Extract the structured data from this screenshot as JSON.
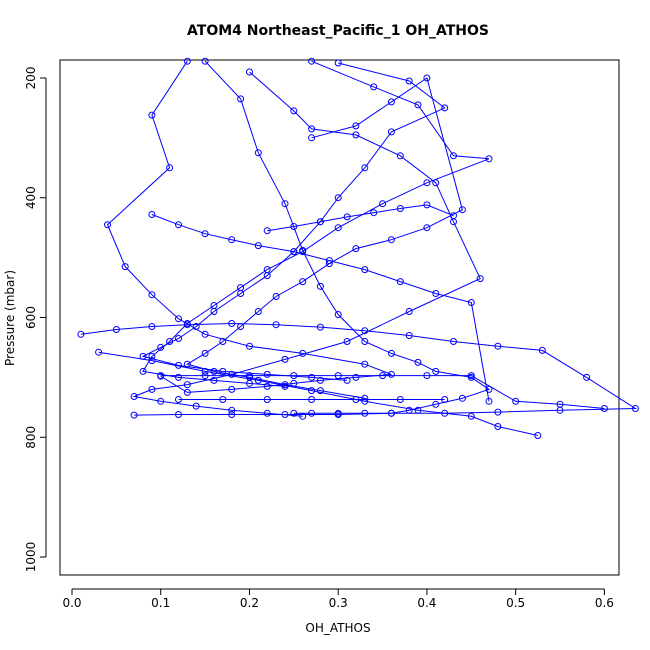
{
  "chart_data": {
    "type": "line",
    "title": "ATOM4 Northeast_Pacific_1 OH_ATHOS",
    "xlabel": "OH_ATHOS",
    "ylabel": "Pressure (mbar)",
    "xlim": [
      0.0,
      0.63
    ],
    "ylim": [
      1030,
      170
    ],
    "y_reversed": true,
    "xticks": [
      0.0,
      0.1,
      0.2,
      0.3,
      0.4,
      0.5,
      0.6
    ],
    "xtick_labels": [
      "0.0",
      "0.1",
      "0.2",
      "0.3",
      "0.4",
      "0.5",
      "0.6"
    ],
    "yticks": [
      200,
      400,
      600,
      800,
      1000
    ],
    "ytick_labels": [
      "200",
      "400",
      "600",
      "800",
      "1000"
    ],
    "grid": false,
    "color": "#0000ff",
    "marker": "open-circle",
    "series": [
      {
        "x": [
          0.13,
          0.09,
          0.11,
          0.04,
          0.06,
          0.09,
          0.12,
          0.15,
          0.2,
          0.26,
          0.33,
          0.36,
          0.32,
          0.28,
          0.25,
          0.22,
          0.18,
          0.13,
          0.1
        ],
        "y": [
          172,
          262,
          350,
          445,
          515,
          562,
          602,
          628,
          648,
          660,
          678,
          695,
          700,
          705,
          710,
          715,
          720,
          725,
          698
        ]
      },
      {
        "x": [
          0.15,
          0.19,
          0.21,
          0.24,
          0.26,
          0.28,
          0.3,
          0.33,
          0.36,
          0.39,
          0.41,
          0.45,
          0.47,
          0.44,
          0.41,
          0.38,
          0.36,
          0.33,
          0.3,
          0.27,
          0.25
        ],
        "y": [
          172,
          235,
          325,
          410,
          488,
          548,
          595,
          640,
          660,
          675,
          690,
          700,
          720,
          735,
          745,
          755,
          760,
          760,
          760,
          760,
          760
        ]
      },
      {
        "x": [
          0.2,
          0.25,
          0.27,
          0.32,
          0.37,
          0.41,
          0.43,
          0.46,
          0.38,
          0.31,
          0.24,
          0.18,
          0.13,
          0.09,
          0.07,
          0.1,
          0.14,
          0.18,
          0.22,
          0.26
        ],
        "y": [
          190,
          255,
          285,
          295,
          330,
          375,
          440,
          535,
          590,
          640,
          670,
          695,
          712,
          720,
          732,
          740,
          748,
          755,
          760,
          765
        ]
      },
      {
        "x": [
          0.27,
          0.34,
          0.39,
          0.43,
          0.47,
          0.4,
          0.35,
          0.3,
          0.26,
          0.22,
          0.19,
          0.16,
          0.13,
          0.11,
          0.09,
          0.08,
          0.12,
          0.16,
          0.2,
          0.24
        ],
        "y": [
          172,
          215,
          245,
          330,
          335,
          375,
          410,
          450,
          490,
          520,
          550,
          580,
          610,
          640,
          665,
          690,
          700,
          705,
          710,
          715
        ]
      },
      {
        "x": [
          0.3,
          0.38,
          0.42,
          0.36,
          0.33,
          0.3,
          0.28,
          0.25,
          0.22,
          0.19,
          0.16,
          0.14,
          0.12,
          0.1,
          0.08,
          0.12,
          0.17,
          0.22,
          0.27,
          0.31
        ],
        "y": [
          175,
          205,
          250,
          290,
          350,
          400,
          440,
          490,
          530,
          560,
          590,
          615,
          635,
          650,
          665,
          680,
          690,
          695,
          700,
          705
        ]
      },
      {
        "x": [
          0.27,
          0.32,
          0.36,
          0.4,
          0.44,
          0.4,
          0.36,
          0.32,
          0.29,
          0.26,
          0.23,
          0.21,
          0.19,
          0.17,
          0.15,
          0.13,
          0.16,
          0.2,
          0.24,
          0.28,
          0.33
        ],
        "y": [
          300,
          280,
          240,
          200,
          420,
          450,
          470,
          485,
          510,
          540,
          565,
          590,
          615,
          640,
          660,
          678,
          690,
          700,
          712,
          722,
          735
        ]
      },
      {
        "x": [
          0.01,
          0.05,
          0.09,
          0.13,
          0.18,
          0.23,
          0.28,
          0.33,
          0.38,
          0.43,
          0.48,
          0.53,
          0.58,
          0.635,
          0.55,
          0.48,
          0.42,
          0.36,
          0.3,
          0.24,
          0.18,
          0.12,
          0.07
        ],
        "y": [
          628,
          620,
          615,
          612,
          610,
          612,
          616,
          622,
          630,
          640,
          648,
          655,
          700,
          752,
          755,
          758,
          760,
          760,
          762,
          762,
          762,
          762,
          763
        ]
      },
      {
        "x": [
          0.03,
          0.09,
          0.15,
          0.21,
          0.27,
          0.33,
          0.39,
          0.45,
          0.48,
          0.525
        ],
        "y": [
          658,
          672,
          690,
          705,
          722,
          740,
          755,
          765,
          782,
          797
        ]
      },
      {
        "x": [
          0.09,
          0.12,
          0.15,
          0.18,
          0.21,
          0.25,
          0.29,
          0.33,
          0.37,
          0.41,
          0.45,
          0.47
        ],
        "y": [
          428,
          445,
          460,
          470,
          480,
          490,
          505,
          520,
          540,
          560,
          575,
          740
        ]
      },
      {
        "x": [
          0.22,
          0.25,
          0.28,
          0.31,
          0.34,
          0.37,
          0.4,
          0.43
        ],
        "y": [
          455,
          448,
          440,
          432,
          425,
          418,
          412,
          430
        ]
      },
      {
        "x": [
          0.1,
          0.15,
          0.2,
          0.25,
          0.3,
          0.35,
          0.4,
          0.45,
          0.5,
          0.55,
          0.6
        ],
        "y": [
          697,
          697,
          697,
          697,
          697,
          697,
          697,
          697,
          740,
          745,
          752
        ]
      },
      {
        "x": [
          0.12,
          0.17,
          0.22,
          0.27,
          0.32,
          0.37,
          0.42
        ],
        "y": [
          737,
          737,
          737,
          737,
          737,
          737,
          737
        ]
      }
    ]
  }
}
